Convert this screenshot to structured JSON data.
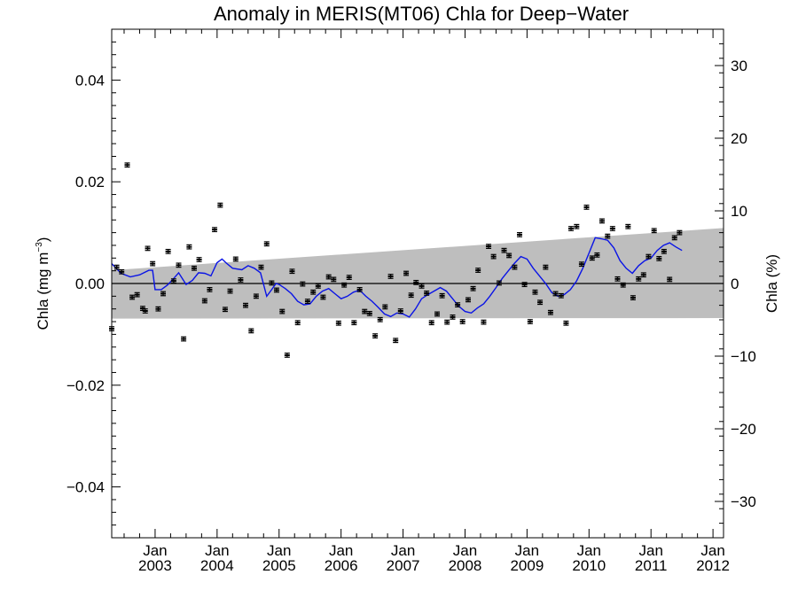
{
  "chart_data": {
    "type": "line",
    "title": "Anomaly in MERIS(MT06) Chla for Deep−Water",
    "ylabel_left": "Chla (mg m",
    "ylabel_left_sup": "−3",
    "ylabel_left_close": ")",
    "ylabel_right": "Chla (%)",
    "xlim": [
      2002.3,
      2012.17
    ],
    "ylim_left": [
      -0.05,
      0.05
    ],
    "ylim_right": [
      -35,
      35
    ],
    "left_ticks": [
      {
        "value": 0.04,
        "label": "0.04"
      },
      {
        "value": 0.02,
        "label": "0.02"
      },
      {
        "value": 0.0,
        "label": "0.00"
      },
      {
        "value": -0.02,
        "label": "−0.02"
      },
      {
        "value": -0.04,
        "label": "−0.04"
      }
    ],
    "right_ticks": [
      {
        "value": 30,
        "label": "30"
      },
      {
        "value": 20,
        "label": "20"
      },
      {
        "value": 10,
        "label": "10"
      },
      {
        "value": 0,
        "label": "0"
      },
      {
        "value": -10,
        "label": "−10"
      },
      {
        "value": -20,
        "label": "−20"
      },
      {
        "value": -30,
        "label": "−30"
      }
    ],
    "x_ticks": [
      {
        "value": 2003.0,
        "label_top": "Jan",
        "label_bottom": "2003"
      },
      {
        "value": 2004.0,
        "label_top": "Jan",
        "label_bottom": "2004"
      },
      {
        "value": 2005.0,
        "label_top": "Jan",
        "label_bottom": "2005"
      },
      {
        "value": 2006.0,
        "label_top": "Jan",
        "label_bottom": "2006"
      },
      {
        "value": 2007.0,
        "label_top": "Jan",
        "label_bottom": "2007"
      },
      {
        "value": 2008.0,
        "label_top": "Jan",
        "label_bottom": "2008"
      },
      {
        "value": 2009.0,
        "label_top": "Jan",
        "label_bottom": "2009"
      },
      {
        "value": 2010.0,
        "label_top": "Jan",
        "label_bottom": "2010"
      },
      {
        "value": 2011.0,
        "label_top": "Jan",
        "label_bottom": "2011"
      },
      {
        "value": 2012.0,
        "label_top": "Jan",
        "label_bottom": "2012"
      }
    ],
    "band": {
      "x": [
        2002.3,
        2012.17
      ],
      "upper": [
        0.0026,
        0.0109
      ],
      "lower": [
        -0.0069,
        -0.0068
      ],
      "color": "#bebebe"
    },
    "series": [
      {
        "kind": "points_with_errorbars",
        "error": 0.0004,
        "points": [
          [
            2002.3,
            -0.0089
          ],
          [
            2002.38,
            0.0032
          ],
          [
            2002.46,
            0.0023
          ],
          [
            2002.55,
            0.0233
          ],
          [
            2002.63,
            -0.0027
          ],
          [
            2002.71,
            -0.0022
          ],
          [
            2002.8,
            -0.0049
          ],
          [
            2002.84,
            -0.0054
          ],
          [
            2002.88,
            0.0069
          ],
          [
            2002.96,
            0.0039
          ],
          [
            2003.05,
            -0.005
          ],
          [
            2003.13,
            -0.002
          ],
          [
            2003.21,
            0.0063
          ],
          [
            2003.3,
            0.0005
          ],
          [
            2003.38,
            0.0036
          ],
          [
            2003.46,
            -0.0109
          ],
          [
            2003.55,
            0.0072
          ],
          [
            2003.63,
            0.003
          ],
          [
            2003.71,
            0.0047
          ],
          [
            2003.8,
            -0.0034
          ],
          [
            2003.88,
            -0.0012
          ],
          [
            2003.96,
            0.0106
          ],
          [
            2004.05,
            0.0154
          ],
          [
            2004.13,
            -0.0051
          ],
          [
            2004.21,
            -0.0015
          ],
          [
            2004.3,
            0.0048
          ],
          [
            2004.38,
            0.0007
          ],
          [
            2004.46,
            -0.0043
          ],
          [
            2004.55,
            -0.0093
          ],
          [
            2004.63,
            -0.0025
          ],
          [
            2004.71,
            0.0032
          ],
          [
            2004.8,
            0.0078
          ],
          [
            2004.88,
            0.0001
          ],
          [
            2004.96,
            -0.0013
          ],
          [
            2005.05,
            -0.0055
          ],
          [
            2005.13,
            -0.0141
          ],
          [
            2005.21,
            0.0024
          ],
          [
            2005.3,
            -0.0077
          ],
          [
            2005.38,
            -0.0001
          ],
          [
            2005.46,
            -0.0035
          ],
          [
            2005.55,
            -0.0017
          ],
          [
            2005.63,
            -0.0005
          ],
          [
            2005.71,
            -0.0027
          ],
          [
            2005.8,
            0.0013
          ],
          [
            2005.88,
            0.0008
          ],
          [
            2005.96,
            -0.0078
          ],
          [
            2006.05,
            -0.0003
          ],
          [
            2006.13,
            0.0012
          ],
          [
            2006.21,
            -0.0077
          ],
          [
            2006.3,
            -0.0012
          ],
          [
            2006.38,
            -0.0055
          ],
          [
            2006.46,
            -0.0059
          ],
          [
            2006.55,
            -0.0103
          ],
          [
            2006.63,
            -0.0071
          ],
          [
            2006.71,
            -0.0046
          ],
          [
            2006.8,
            0.0014
          ],
          [
            2006.88,
            -0.0112
          ],
          [
            2006.96,
            -0.0054
          ],
          [
            2007.05,
            0.002
          ],
          [
            2007.13,
            -0.0023
          ],
          [
            2007.21,
            0.0002
          ],
          [
            2007.3,
            -0.0005
          ],
          [
            2007.38,
            -0.0019
          ],
          [
            2007.46,
            -0.0077
          ],
          [
            2007.55,
            -0.006
          ],
          [
            2007.63,
            -0.0024
          ],
          [
            2007.71,
            -0.0076
          ],
          [
            2007.8,
            -0.0066
          ],
          [
            2007.88,
            -0.0042
          ],
          [
            2007.96,
            -0.0075
          ],
          [
            2008.05,
            -0.0032
          ],
          [
            2008.13,
            -0.001
          ],
          [
            2008.21,
            0.0026
          ],
          [
            2008.3,
            -0.0076
          ],
          [
            2008.38,
            0.0073
          ],
          [
            2008.46,
            0.0053
          ],
          [
            2008.55,
            0.0001
          ],
          [
            2008.63,
            0.0065
          ],
          [
            2008.71,
            0.0055
          ],
          [
            2008.8,
            0.0032
          ],
          [
            2008.88,
            0.0096
          ],
          [
            2008.96,
            -0.0002
          ],
          [
            2009.05,
            -0.0075
          ],
          [
            2009.13,
            -0.0017
          ],
          [
            2009.21,
            -0.0037
          ],
          [
            2009.3,
            0.0032
          ],
          [
            2009.38,
            -0.0057
          ],
          [
            2009.46,
            -0.002
          ],
          [
            2009.55,
            -0.0024
          ],
          [
            2009.63,
            -0.0078
          ],
          [
            2009.71,
            0.0108
          ],
          [
            2009.8,
            0.0112
          ],
          [
            2009.88,
            0.0038
          ],
          [
            2009.96,
            0.015
          ],
          [
            2010.05,
            0.005
          ],
          [
            2010.13,
            0.0056
          ],
          [
            2010.21,
            0.0123
          ],
          [
            2010.3,
            0.0093
          ],
          [
            2010.38,
            0.0108
          ],
          [
            2010.46,
            0.0009
          ],
          [
            2010.55,
            -0.0003
          ],
          [
            2010.63,
            0.0112
          ],
          [
            2010.71,
            -0.0028
          ],
          [
            2010.8,
            0.0009
          ],
          [
            2010.88,
            0.0017
          ],
          [
            2010.96,
            0.0053
          ],
          [
            2011.05,
            0.0104
          ],
          [
            2011.13,
            0.0049
          ],
          [
            2011.21,
            0.0063
          ],
          [
            2011.3,
            0.0008
          ],
          [
            2011.38,
            0.009
          ],
          [
            2011.46,
            0.01
          ]
        ]
      },
      {
        "kind": "smoothed_line",
        "color": "#0a14e6",
        "points": [
          [
            2002.3,
            0.0039
          ],
          [
            2002.45,
            0.002
          ],
          [
            2002.6,
            0.0013
          ],
          [
            2002.75,
            0.0017
          ],
          [
            2002.9,
            0.0026
          ],
          [
            2002.96,
            0.0026
          ],
          [
            2003.0,
            -0.0012
          ],
          [
            2003.1,
            -0.0012
          ],
          [
            2003.2,
            -0.0003
          ],
          [
            2003.3,
            0.001
          ],
          [
            2003.38,
            0.0021
          ],
          [
            2003.5,
            -0.0002
          ],
          [
            2003.6,
            0.0006
          ],
          [
            2003.7,
            0.0021
          ],
          [
            2003.8,
            0.002
          ],
          [
            2003.9,
            0.0015
          ],
          [
            2004.0,
            0.0041
          ],
          [
            2004.08,
            0.0048
          ],
          [
            2004.15,
            0.004
          ],
          [
            2004.25,
            0.003
          ],
          [
            2004.4,
            0.0027
          ],
          [
            2004.5,
            0.0035
          ],
          [
            2004.6,
            0.003
          ],
          [
            2004.7,
            0.0021
          ],
          [
            2004.8,
            -0.0025
          ],
          [
            2004.88,
            -0.0012
          ],
          [
            2004.95,
            0.0
          ],
          [
            2005.0,
            -0.0002
          ],
          [
            2005.1,
            -0.001
          ],
          [
            2005.2,
            -0.002
          ],
          [
            2005.3,
            -0.0035
          ],
          [
            2005.4,
            -0.0042
          ],
          [
            2005.5,
            -0.004
          ],
          [
            2005.6,
            -0.0025
          ],
          [
            2005.7,
            -0.0015
          ],
          [
            2005.8,
            -0.001
          ],
          [
            2005.9,
            -0.002
          ],
          [
            2006.0,
            -0.003
          ],
          [
            2006.1,
            -0.0025
          ],
          [
            2006.2,
            -0.0017
          ],
          [
            2006.3,
            -0.0013
          ],
          [
            2006.4,
            -0.0025
          ],
          [
            2006.5,
            -0.0035
          ],
          [
            2006.6,
            -0.0047
          ],
          [
            2006.7,
            -0.006
          ],
          [
            2006.8,
            -0.0065
          ],
          [
            2006.9,
            -0.0058
          ],
          [
            2007.0,
            -0.006
          ],
          [
            2007.1,
            -0.0066
          ],
          [
            2007.2,
            -0.005
          ],
          [
            2007.3,
            -0.003
          ],
          [
            2007.4,
            -0.0022
          ],
          [
            2007.5,
            -0.0015
          ],
          [
            2007.6,
            -0.0008
          ],
          [
            2007.7,
            -0.0015
          ],
          [
            2007.8,
            -0.003
          ],
          [
            2007.9,
            -0.0045
          ],
          [
            2008.0,
            -0.0055
          ],
          [
            2008.1,
            -0.0058
          ],
          [
            2008.2,
            -0.0048
          ],
          [
            2008.3,
            -0.004
          ],
          [
            2008.4,
            -0.0025
          ],
          [
            2008.5,
            -0.0008
          ],
          [
            2008.6,
            0.001
          ],
          [
            2008.7,
            0.0025
          ],
          [
            2008.8,
            0.004
          ],
          [
            2008.9,
            0.0053
          ],
          [
            2009.0,
            0.0048
          ],
          [
            2009.1,
            0.003
          ],
          [
            2009.2,
            0.0015
          ],
          [
            2009.3,
            0.0
          ],
          [
            2009.4,
            -0.0018
          ],
          [
            2009.5,
            -0.0025
          ],
          [
            2009.6,
            -0.0022
          ],
          [
            2009.7,
            -0.0012
          ],
          [
            2009.8,
            0.0005
          ],
          [
            2009.9,
            0.003
          ],
          [
            2010.0,
            0.006
          ],
          [
            2010.1,
            0.009
          ],
          [
            2010.2,
            0.0088
          ],
          [
            2010.3,
            0.0085
          ],
          [
            2010.4,
            0.007
          ],
          [
            2010.5,
            0.0045
          ],
          [
            2010.6,
            0.003
          ],
          [
            2010.7,
            0.002
          ],
          [
            2010.8,
            0.0035
          ],
          [
            2010.9,
            0.0045
          ],
          [
            2011.0,
            0.005
          ],
          [
            2011.1,
            0.0065
          ],
          [
            2011.2,
            0.0075
          ],
          [
            2011.3,
            0.008
          ],
          [
            2011.4,
            0.0072
          ],
          [
            2011.5,
            0.0065
          ]
        ]
      }
    ]
  }
}
